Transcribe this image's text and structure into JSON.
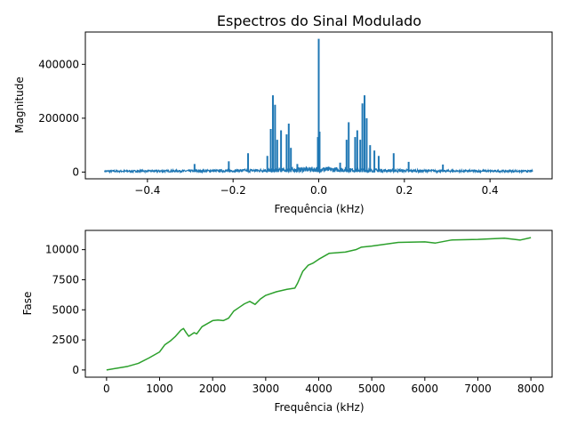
{
  "figure": {
    "title": "Espectros do Sinal Modulado"
  },
  "chart_data": [
    {
      "type": "line",
      "title": "Espectros do Sinal Modulado",
      "xlabel": "Frequência (kHz)",
      "ylabel": "Magnitude",
      "xlim": [
        -0.545,
        0.545
      ],
      "ylim": [
        -25000,
        520000
      ],
      "xticks": [
        -0.4,
        -0.2,
        0.0,
        0.2,
        0.4
      ],
      "xtick_labels": [
        "−0.4",
        "−0.2",
        "0.0",
        "0.2",
        "0.4"
      ],
      "yticks": [
        0,
        200000,
        400000
      ],
      "ytick_labels": [
        "0",
        "200000",
        "400000"
      ],
      "grid": false,
      "series": [
        {
          "color": "#1f77b4",
          "noise_floor": 6000,
          "x_range": [
            -0.5,
            0.5
          ],
          "peaks": [
            {
              "x": 0.0,
              "y": 495000
            },
            {
              "x": 0.002,
              "y": 150000
            },
            {
              "x": -0.002,
              "y": 130000
            },
            {
              "x": -0.107,
              "y": 285000
            },
            {
              "x": -0.102,
              "y": 250000
            },
            {
              "x": -0.112,
              "y": 160000
            },
            {
              "x": -0.097,
              "y": 120000
            },
            {
              "x": -0.088,
              "y": 155000
            },
            {
              "x": -0.075,
              "y": 140000
            },
            {
              "x": -0.07,
              "y": 180000
            },
            {
              "x": -0.065,
              "y": 90000
            },
            {
              "x": -0.12,
              "y": 60000
            },
            {
              "x": -0.165,
              "y": 70000
            },
            {
              "x": 0.107,
              "y": 285000
            },
            {
              "x": 0.102,
              "y": 255000
            },
            {
              "x": 0.112,
              "y": 200000
            },
            {
              "x": 0.097,
              "y": 120000
            },
            {
              "x": 0.09,
              "y": 155000
            },
            {
              "x": 0.085,
              "y": 130000
            },
            {
              "x": 0.07,
              "y": 185000
            },
            {
              "x": 0.065,
              "y": 120000
            },
            {
              "x": 0.12,
              "y": 100000
            },
            {
              "x": 0.13,
              "y": 80000
            },
            {
              "x": 0.14,
              "y": 60000
            },
            {
              "x": 0.175,
              "y": 70000
            },
            {
              "x": -0.05,
              "y": 30000
            },
            {
              "x": 0.05,
              "y": 35000
            },
            {
              "x": -0.21,
              "y": 40000
            },
            {
              "x": 0.21,
              "y": 38000
            },
            {
              "x": -0.29,
              "y": 30000
            },
            {
              "x": 0.29,
              "y": 28000
            }
          ]
        }
      ]
    },
    {
      "type": "line",
      "title": "",
      "xlabel": "Frequência (kHz)",
      "ylabel": "Fase",
      "xlim": [
        -400,
        8400
      ],
      "ylim": [
        -600,
        11600
      ],
      "xticks": [
        0,
        1000,
        2000,
        3000,
        4000,
        5000,
        6000,
        7000,
        8000
      ],
      "xtick_labels": [
        "0",
        "1000",
        "2000",
        "3000",
        "4000",
        "5000",
        "6000",
        "7000",
        "8000"
      ],
      "yticks": [
        0,
        2500,
        5000,
        7500,
        10000
      ],
      "ytick_labels": [
        "0",
        "2500",
        "5000",
        "7500",
        "10000"
      ],
      "grid": false,
      "series": [
        {
          "color": "#2ca02c",
          "points": [
            [
              0,
              0
            ],
            [
              200,
              150
            ],
            [
              400,
              300
            ],
            [
              600,
              550
            ],
            [
              800,
              1000
            ],
            [
              1000,
              1500
            ],
            [
              1100,
              2100
            ],
            [
              1200,
              2400
            ],
            [
              1300,
              2800
            ],
            [
              1400,
              3300
            ],
            [
              1450,
              3450
            ],
            [
              1500,
              3100
            ],
            [
              1550,
              2800
            ],
            [
              1650,
              3100
            ],
            [
              1700,
              3000
            ],
            [
              1800,
              3600
            ],
            [
              1900,
              3850
            ],
            [
              2000,
              4100
            ],
            [
              2100,
              4150
            ],
            [
              2200,
              4100
            ],
            [
              2300,
              4300
            ],
            [
              2400,
              4900
            ],
            [
              2500,
              5200
            ],
            [
              2600,
              5500
            ],
            [
              2700,
              5700
            ],
            [
              2800,
              5450
            ],
            [
              2900,
              5900
            ],
            [
              3000,
              6200
            ],
            [
              3200,
              6500
            ],
            [
              3400,
              6700
            ],
            [
              3550,
              6800
            ],
            [
              3600,
              7200
            ],
            [
              3700,
              8200
            ],
            [
              3800,
              8700
            ],
            [
              3900,
              8900
            ],
            [
              4000,
              9200
            ],
            [
              4200,
              9700
            ],
            [
              4500,
              9800
            ],
            [
              4700,
              10000
            ],
            [
              4800,
              10200
            ],
            [
              5000,
              10300
            ],
            [
              5500,
              10600
            ],
            [
              6000,
              10650
            ],
            [
              6200,
              10550
            ],
            [
              6500,
              10800
            ],
            [
              7000,
              10850
            ],
            [
              7500,
              10950
            ],
            [
              7800,
              10800
            ],
            [
              8000,
              11000
            ]
          ]
        }
      ]
    }
  ]
}
